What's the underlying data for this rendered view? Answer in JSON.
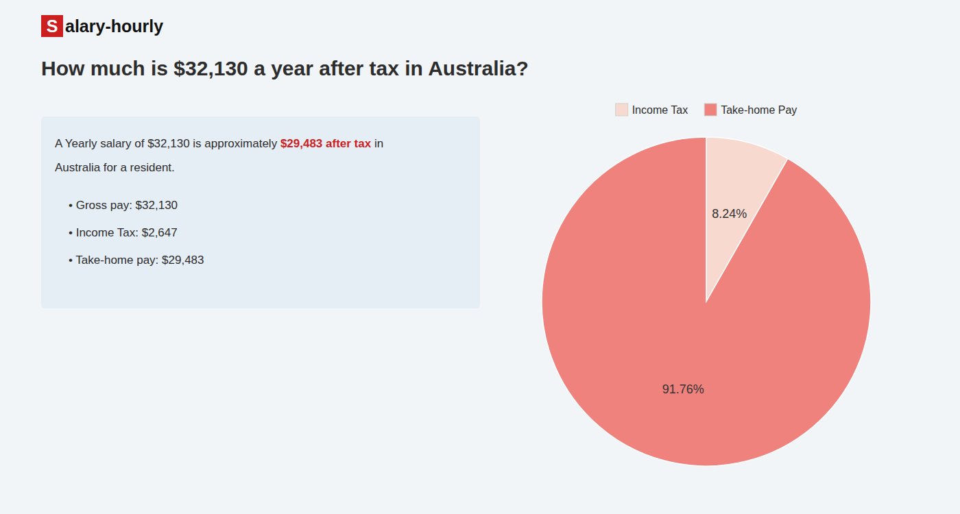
{
  "chart_data": {
    "type": "pie",
    "title": "How much is $32,130 a year after tax in Australia?",
    "categories": [
      "Income Tax",
      "Take-home Pay"
    ],
    "values": [
      8.24,
      91.76
    ],
    "value_labels": [
      "8.24%",
      "91.76%"
    ],
    "colors": [
      "#f7d9cf",
      "#f0827d"
    ],
    "data_labels": true,
    "legend": "top",
    "annotations": [
      {
        "text": "S",
        "color": "#cc1f1f"
      },
      {
        "text": "alary-hourly"
      },
      {
        "text": "A Yearly salary of $32,130 is approximately "
      },
      {
        "text": "$29,483 after tax",
        "color": "#cc1f1f"
      },
      {
        "text": " in"
      },
      {
        "text": "Australia for a resident."
      },
      {
        "text": "•  Gross pay: $32,130"
      },
      {
        "text": "•  Income Tax: $2,647"
      },
      {
        "text": "•  Take-home pay: $29,483"
      }
    ]
  }
}
